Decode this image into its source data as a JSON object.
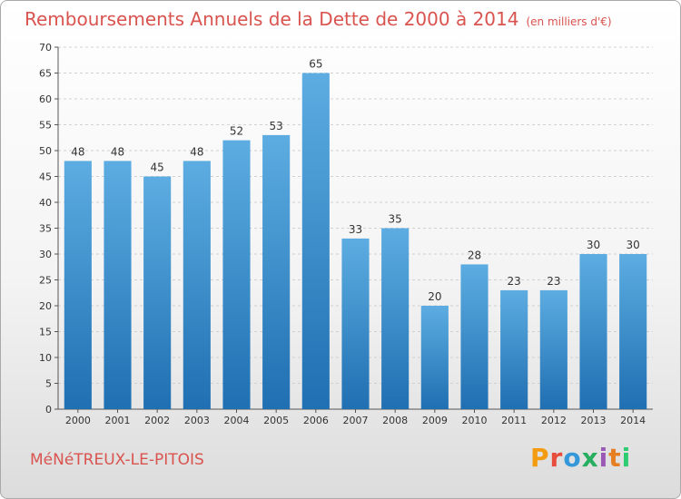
{
  "header": {
    "title": "Remboursements Annuels de la Dette de 2000 à 2014",
    "unit": "(en milliers d'€)"
  },
  "footer": {
    "commune": "MéNéTREUX-LE-PITOIS",
    "logo_text": "Proxiti",
    "logo_colors": [
      "#f39c12",
      "#e74c3c",
      "#3498db",
      "#27ae60",
      "#9b59b6",
      "#e67e22",
      "#2ecc71"
    ]
  },
  "colors": {
    "bar_top": "#5dade2",
    "bar_bottom": "#1f6fb2",
    "title": "#d9534f",
    "grid": "#d0d0d0"
  },
  "chart_data": {
    "type": "bar",
    "title": "Remboursements Annuels de la Dette de 2000 à 2014",
    "subtitle": "(en milliers d'€)",
    "xlabel": "",
    "ylabel": "",
    "categories": [
      "2000",
      "2001",
      "2002",
      "2003",
      "2004",
      "2005",
      "2006",
      "2007",
      "2008",
      "2009",
      "2010",
      "2011",
      "2012",
      "2013",
      "2014"
    ],
    "values": [
      48,
      48,
      45,
      48,
      52,
      53,
      65,
      33,
      35,
      20,
      28,
      23,
      23,
      30,
      30
    ],
    "ylim": [
      0,
      70
    ],
    "yticks": [
      0,
      5,
      10,
      15,
      20,
      25,
      30,
      35,
      40,
      45,
      50,
      55,
      60,
      65,
      70
    ],
    "grid": true,
    "data_labels": true
  }
}
